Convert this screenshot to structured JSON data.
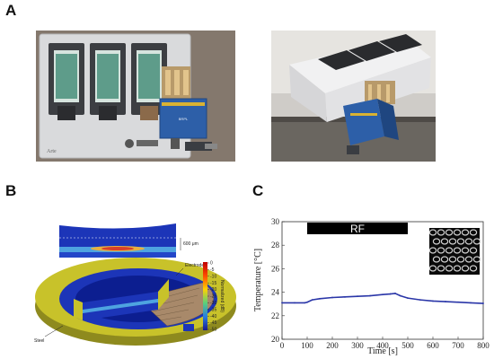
{
  "panels": {
    "a": {
      "label": "A"
    },
    "b": {
      "label": "B",
      "annotations": {
        "depth": "600 μm",
        "electrodes": "Electrodes",
        "steel": "Steel",
        "colorbar_title": "Normalized (dB)"
      },
      "colorbar_ticks": [
        "0",
        "-5",
        "-10",
        "-15",
        "-20",
        "-25",
        "-30",
        "-35",
        "-40",
        "-45",
        "-50"
      ]
    },
    "c": {
      "label": "C"
    }
  },
  "device_photo_text": {
    "module_label": "BRPL",
    "brand": "Arte"
  },
  "chart_data": {
    "type": "line",
    "xlabel": "Time [s]",
    "ylabel": "Temperature [°C]",
    "xlim": [
      0,
      800
    ],
    "ylim": [
      20,
      30
    ],
    "xticks": [
      0,
      100,
      200,
      300,
      400,
      500,
      600,
      700,
      800
    ],
    "yticks": [
      20,
      22,
      24,
      26,
      28,
      30
    ],
    "annotation": {
      "text": "RF",
      "x_start": 100,
      "x_end": 500
    },
    "series": [
      {
        "x": [
          0,
          50,
          90,
          100,
          120,
          150,
          200,
          250,
          300,
          350,
          400,
          430,
          450,
          470,
          500,
          550,
          600,
          650,
          700,
          750,
          800
        ],
        "y": [
          23.1,
          23.1,
          23.1,
          23.15,
          23.35,
          23.45,
          23.55,
          23.6,
          23.65,
          23.7,
          23.8,
          23.85,
          23.9,
          23.7,
          23.5,
          23.35,
          23.25,
          23.2,
          23.15,
          23.1,
          23.05
        ]
      }
    ],
    "line_color": "#2a36a8",
    "grid": false,
    "has_inset_image": true
  }
}
